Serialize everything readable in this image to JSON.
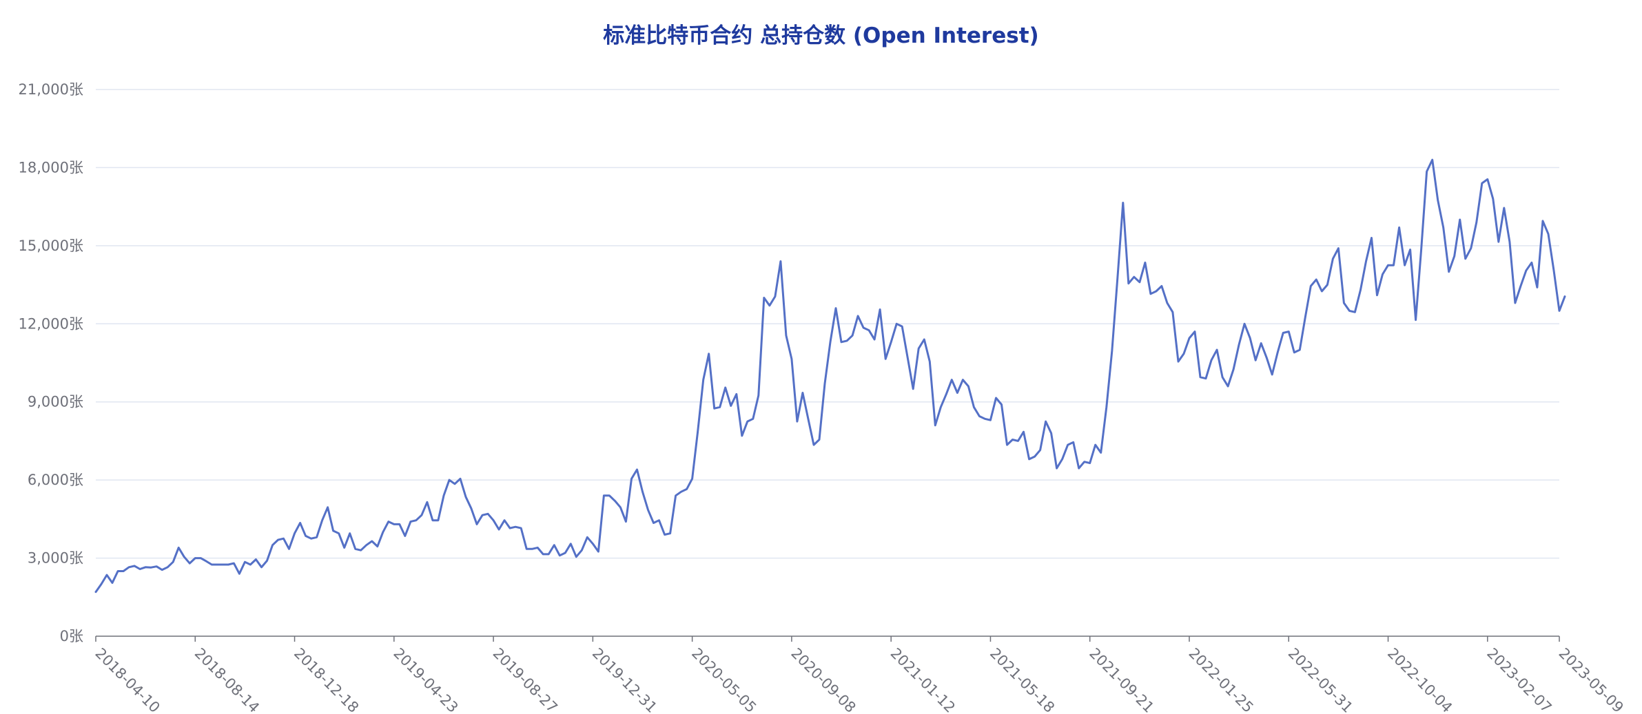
{
  "chart_data": {
    "type": "line",
    "title": "标准比特币合约 总持仓数 (Open Interest)",
    "xlabel": "",
    "ylabel": "",
    "y_unit_suffix": "张",
    "ylim": [
      0,
      21000
    ],
    "yticks": [
      0,
      3000,
      6000,
      9000,
      12000,
      15000,
      18000,
      21000
    ],
    "ytick_labels": [
      "0张",
      "3,000张",
      "6,000张",
      "9,000张",
      "12,000张",
      "15,000张",
      "18,000张",
      "21,000张"
    ],
    "xlim": [
      "2018-04-10",
      "2023-05-09"
    ],
    "xtick_labels": [
      "2018-04-10",
      "2018-08-14",
      "2018-12-18",
      "2019-04-23",
      "2019-08-27",
      "2019-12-31",
      "2020-05-05",
      "2020-09-08",
      "2021-01-12",
      "2021-05-18",
      "2021-09-21",
      "2022-01-25",
      "2022-05-31",
      "2022-10-04",
      "2023-02-07",
      "2023-05-09"
    ],
    "grid": true,
    "legend": "none",
    "line_color": "#5470c6",
    "series": [
      {
        "x_start": "2018-04-10",
        "x_step_days": 7,
        "values": [
          1700,
          2000,
          2350,
          2050,
          2500,
          2500,
          2650,
          2700,
          2580,
          2650,
          2640,
          2680,
          2550,
          2650,
          2850,
          3400,
          3050,
          2800,
          3000,
          3000,
          2880,
          2750,
          2750,
          2750,
          2750,
          2800,
          2400,
          2850,
          2750,
          2950,
          2650,
          2900,
          3500,
          3700,
          3750,
          3350,
          3950,
          4350,
          3850,
          3750,
          3800,
          4450,
          4950,
          4050,
          3950,
          3400,
          3950,
          3350,
          3300,
          3500,
          3650,
          3450,
          4000,
          4400,
          4300,
          4300,
          3850,
          4400,
          4450,
          4650,
          5150,
          4450,
          4450,
          5400,
          6000,
          5850,
          6050,
          5350,
          4900,
          4300,
          4650,
          4700,
          4450,
          4100,
          4450,
          4150,
          4200,
          4150,
          3350,
          3350,
          3400,
          3150,
          3150,
          3500,
          3100,
          3200,
          3550,
          3050,
          3300,
          3800,
          3550,
          3250,
          5400,
          5400,
          5200,
          4950,
          4400,
          6050,
          6400,
          5550,
          4850,
          4350,
          4450,
          3900,
          3950,
          5400,
          5550,
          5650,
          6050,
          7850,
          9850,
          10850,
          8750,
          8800,
          9550,
          8850,
          9300,
          7700,
          8250,
          8350,
          9250,
          13000,
          12700,
          13050,
          14400,
          11550,
          10650,
          8250,
          9350,
          8350,
          7350,
          7550,
          9700,
          11300,
          12600,
          11300,
          11350,
          11550,
          12300,
          11850,
          11750,
          11400,
          12550,
          10650,
          11300,
          12000,
          11900,
          10700,
          9500,
          11050,
          11400,
          10550,
          8100,
          8800,
          9300,
          9850,
          9350,
          9850,
          9600,
          8800,
          8450,
          8350,
          8300,
          9150,
          8900,
          7350,
          7550,
          7500,
          7850,
          6800,
          6900,
          7150,
          8250,
          7800,
          6450,
          6800,
          7350,
          7450,
          6450,
          6700,
          6650,
          7350,
          7050,
          8800,
          10950,
          13750,
          16650,
          13550,
          13800,
          13600,
          14350,
          13150,
          13250,
          13450,
          12800,
          12450,
          10550,
          10850,
          11450,
          11700,
          9950,
          9900,
          10600,
          11000,
          9950,
          9600,
          10250,
          11200,
          12000,
          11450,
          10600,
          11250,
          10700,
          10050,
          10900,
          11650,
          11700,
          10900,
          11000,
          12250,
          13450,
          13700,
          13250,
          13500,
          14500,
          14900,
          12800,
          12500,
          12450,
          13300,
          14400,
          15300,
          13100,
          13900,
          14250,
          14250,
          15700,
          14250,
          14850,
          12150,
          14850,
          17850,
          18300,
          16750,
          15700,
          14000,
          14600,
          16000,
          14500,
          14900,
          15900,
          17400,
          17550,
          16800,
          15150,
          16450,
          15150,
          12800,
          13450,
          14050,
          14350,
          13400,
          15950,
          15450,
          14050,
          12500,
          13050
        ]
      }
    ]
  }
}
